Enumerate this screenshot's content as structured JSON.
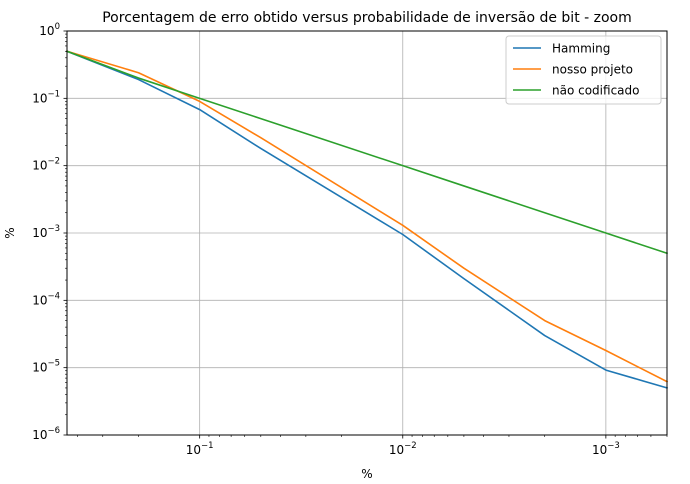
{
  "chart_data": {
    "type": "line",
    "title": "Porcentagem de erro obtido versus probabilidade de inversão de bit - zoom",
    "xlabel": "%",
    "ylabel": "%",
    "x_scale": "log",
    "y_scale": "log",
    "x_reversed": true,
    "xlim": [
      0.45,
      0.0005
    ],
    "ylim": [
      1e-06,
      1
    ],
    "grid": true,
    "legend_position": "top-right",
    "x_ticks": [
      {
        "base": "10",
        "exp": "−1",
        "value": 0.1
      },
      {
        "base": "10",
        "exp": "−2",
        "value": 0.01
      },
      {
        "base": "10",
        "exp": "−3",
        "value": 0.001
      }
    ],
    "y_ticks": [
      {
        "base": "10",
        "exp": "0",
        "value": 1
      },
      {
        "base": "10",
        "exp": "−1",
        "value": 0.1
      },
      {
        "base": "10",
        "exp": "−2",
        "value": 0.01
      },
      {
        "base": "10",
        "exp": "−3",
        "value": 0.001
      },
      {
        "base": "10",
        "exp": "−4",
        "value": 0.0001
      },
      {
        "base": "10",
        "exp": "−5",
        "value": 1e-05
      },
      {
        "base": "10",
        "exp": "−6",
        "value": 1e-06
      }
    ],
    "series": [
      {
        "name": "Hamming",
        "color": "#1f77b4",
        "x": [
          0.45,
          0.2,
          0.1,
          0.05,
          0.01,
          0.005,
          0.002,
          0.001,
          0.0005
        ],
        "y": [
          0.5,
          0.19,
          0.068,
          0.018,
          0.00095,
          0.00021,
          3e-05,
          9.2e-06,
          5e-06
        ]
      },
      {
        "name": "nosso projeto",
        "color": "#ff7f0e",
        "x": [
          0.45,
          0.2,
          0.1,
          0.05,
          0.01,
          0.005,
          0.002,
          0.001,
          0.0005
        ],
        "y": [
          0.5,
          0.24,
          0.09,
          0.026,
          0.0013,
          0.0003,
          5e-05,
          1.8e-05,
          6.2e-06
        ]
      },
      {
        "name": "não codificado",
        "color": "#2ca02c",
        "x": [
          0.45,
          0.2,
          0.1,
          0.05,
          0.01,
          0.005,
          0.002,
          0.001,
          0.0005
        ],
        "y": [
          0.5,
          0.2,
          0.1,
          0.05,
          0.01,
          0.005,
          0.002,
          0.001,
          0.0005
        ]
      }
    ]
  }
}
